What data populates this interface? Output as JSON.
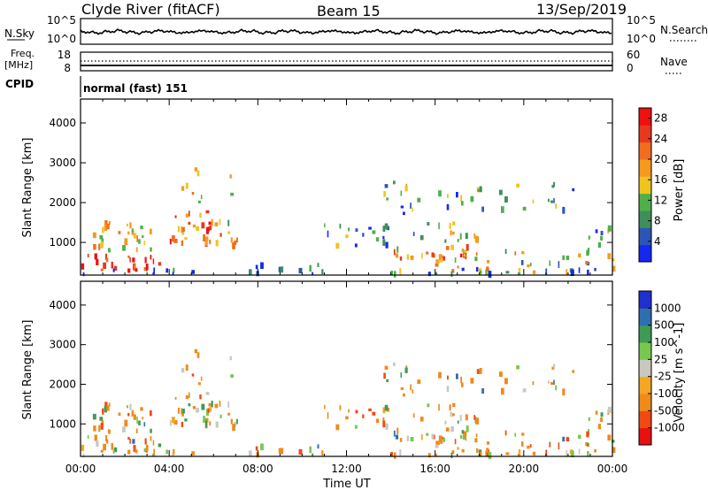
{
  "header": {
    "station": "Clyde River (fitACF)",
    "beam": "Beam 15",
    "date": "13/Sep/2019"
  },
  "noise_panel": {
    "left_label": "N.Sky",
    "left_ticks": [
      "10^5",
      "10^0"
    ],
    "right_label": "N.Search",
    "right_ticks": [
      "10^5",
      "10^0"
    ]
  },
  "freq_panel": {
    "left_label_1": "Freq.",
    "left_label_2": "[MHz]",
    "left_ticks": [
      "18",
      "8"
    ],
    "right_label": "Nave",
    "right_ticks": [
      "60",
      "0"
    ]
  },
  "cpid": {
    "label": "CPID",
    "mode": "normal (fast) 151"
  },
  "colors": {
    "power_scale": [
      "#1428f0",
      "#2b56b8",
      "#3f8f5a",
      "#4fb04a",
      "#f0c41e",
      "#f59a1e",
      "#f06e1e",
      "#e83820",
      "#f01010"
    ],
    "velocity_scale": [
      "#e81010",
      "#f04a14",
      "#f08a1a",
      "#f5a623",
      "#c8c8c0",
      "#78c850",
      "#3f9a55",
      "#2f6fb0",
      "#2030d0"
    ]
  },
  "chart_data": [
    {
      "type": "heatmap",
      "title": "Power",
      "ylabel": "Slant Range [km]",
      "xlabel": "",
      "x_ticks": [
        "00:00",
        "04:00",
        "08:00",
        "12:00",
        "16:00",
        "20:00",
        "00:00"
      ],
      "y_ticks": [
        1000,
        2000,
        3000,
        4000
      ],
      "ylim": [
        180,
        4600
      ],
      "colorbar": {
        "label": "Power [dB]",
        "ticks": [
          4,
          8,
          12,
          16,
          20,
          24,
          28
        ],
        "range": [
          0,
          30
        ]
      }
    },
    {
      "type": "heatmap",
      "title": "Velocity",
      "ylabel": "Slant Range [km]",
      "xlabel": "Time UT",
      "x_ticks": [
        "00:00",
        "04:00",
        "08:00",
        "12:00",
        "16:00",
        "20:00",
        "00:00"
      ],
      "y_ticks": [
        1000,
        2000,
        3000,
        4000
      ],
      "ylim": [
        180,
        4600
      ],
      "colorbar": {
        "label": "Velocity [m s^-1]",
        "ticks": [
          "1000",
          "500",
          "100",
          "25",
          "-25",
          "-100",
          "-500",
          "-1000"
        ]
      }
    }
  ]
}
